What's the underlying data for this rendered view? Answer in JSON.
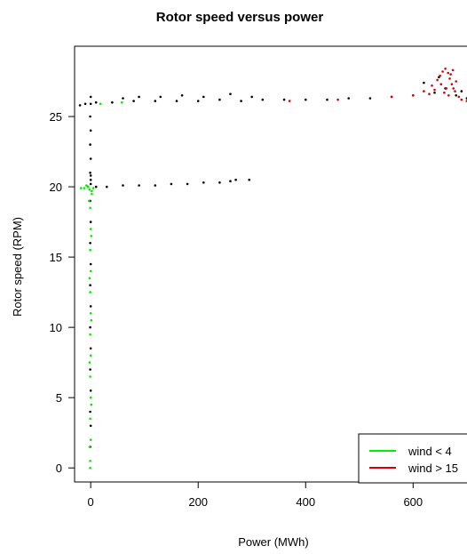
{
  "chart_data": {
    "type": "scatter",
    "title": "Rotor speed versus power",
    "xlabel": "Power (MWh)",
    "ylabel": "Rotor speed (RPM)",
    "xlim": [
      -30,
      730
    ],
    "ylim": [
      -1,
      30
    ],
    "xticks": [
      0,
      200,
      400,
      600
    ],
    "yticks": [
      0,
      5,
      10,
      15,
      20,
      25
    ],
    "grid": false,
    "legend_position": "bottom-right",
    "legend": [
      {
        "label": "wind < 4",
        "color": "#00ee00"
      },
      {
        "label": "wind > 15",
        "color": "#dd0000"
      }
    ],
    "series": [
      {
        "name": "wind < 4",
        "color": "#00ee00",
        "points": [
          [
            -5,
            20.0
          ],
          [
            -12,
            19.9
          ],
          [
            -18,
            19.9
          ],
          [
            -2,
            19.8
          ],
          [
            2,
            19.7
          ],
          [
            -8,
            20.1
          ],
          [
            5,
            19.9
          ],
          [
            -1,
            18.5
          ],
          [
            0,
            17.0
          ],
          [
            -1,
            15.5
          ],
          [
            0,
            14.0
          ],
          [
            -1,
            12.5
          ],
          [
            0,
            11.0
          ],
          [
            -1,
            9.5
          ],
          [
            0,
            8.0
          ],
          [
            -1,
            6.5
          ],
          [
            0,
            5.0
          ],
          [
            -1,
            3.5
          ],
          [
            0,
            2.0
          ],
          [
            -1,
            0.5
          ],
          [
            -1,
            0.0
          ],
          [
            2,
            19.5
          ],
          [
            -3,
            19.0
          ],
          [
            1,
            16.5
          ],
          [
            -2,
            13.5
          ],
          [
            1,
            10.5
          ],
          [
            -2,
            7.5
          ],
          [
            1,
            4.5
          ],
          [
            -2,
            1.5
          ],
          [
            18,
            25.9
          ],
          [
            58,
            26.0
          ]
        ]
      },
      {
        "name": "wind > 15",
        "color": "#dd0000",
        "points": [
          [
            370,
            26.1
          ],
          [
            460,
            26.2
          ],
          [
            560,
            26.4
          ],
          [
            600,
            26.5
          ],
          [
            620,
            26.8
          ],
          [
            635,
            27.2
          ],
          [
            645,
            27.6
          ],
          [
            650,
            27.9
          ],
          [
            655,
            28.2
          ],
          [
            660,
            28.4
          ],
          [
            665,
            28.1
          ],
          [
            668,
            27.7
          ],
          [
            672,
            27.3
          ],
          [
            675,
            27.0
          ],
          [
            678,
            26.8
          ],
          [
            680,
            27.5
          ],
          [
            670,
            28.0
          ],
          [
            662,
            27.0
          ],
          [
            658,
            26.7
          ],
          [
            685,
            26.4
          ],
          [
            690,
            26.2
          ],
          [
            700,
            26.1
          ],
          [
            710,
            26.2
          ],
          [
            640,
            26.9
          ],
          [
            630,
            26.6
          ],
          [
            666,
            26.5
          ],
          [
            674,
            28.3
          ],
          [
            652,
            27.3
          ]
        ]
      },
      {
        "name": "",
        "color": "#000000",
        "points": [
          [
            -20,
            25.8
          ],
          [
            -10,
            25.9
          ],
          [
            0,
            25.9
          ],
          [
            10,
            26.0
          ],
          [
            40,
            26.0
          ],
          [
            80,
            26.1
          ],
          [
            120,
            26.1
          ],
          [
            160,
            26.1
          ],
          [
            200,
            26.1
          ],
          [
            240,
            26.2
          ],
          [
            280,
            26.1
          ],
          [
            320,
            26.2
          ],
          [
            360,
            26.2
          ],
          [
            400,
            26.2
          ],
          [
            440,
            26.2
          ],
          [
            480,
            26.3
          ],
          [
            520,
            26.3
          ],
          [
            560,
            26.4
          ],
          [
            600,
            26.5
          ],
          [
            640,
            26.7
          ],
          [
            660,
            27.0
          ],
          [
            680,
            26.5
          ],
          [
            700,
            26.3
          ],
          [
            60,
            26.3
          ],
          [
            90,
            26.4
          ],
          [
            130,
            26.4
          ],
          [
            170,
            26.5
          ],
          [
            210,
            26.4
          ],
          [
            260,
            26.6
          ],
          [
            300,
            26.4
          ],
          [
            0,
            26.4
          ],
          [
            -1,
            25.0
          ],
          [
            0,
            24.0
          ],
          [
            -1,
            23.0
          ],
          [
            0,
            22.0
          ],
          [
            -1,
            21.0
          ],
          [
            0,
            20.5
          ],
          [
            -1,
            19.0
          ],
          [
            0,
            17.5
          ],
          [
            -1,
            16.0
          ],
          [
            0,
            14.5
          ],
          [
            -1,
            13.0
          ],
          [
            0,
            11.5
          ],
          [
            -1,
            10.0
          ],
          [
            0,
            8.5
          ],
          [
            -1,
            7.0
          ],
          [
            0,
            5.5
          ],
          [
            -1,
            4.0
          ],
          [
            0,
            3.0
          ],
          [
            -1,
            1.5
          ],
          [
            -5,
            20.0
          ],
          [
            10,
            20.0
          ],
          [
            30,
            20.0
          ],
          [
            60,
            20.1
          ],
          [
            90,
            20.1
          ],
          [
            120,
            20.1
          ],
          [
            150,
            20.2
          ],
          [
            180,
            20.2
          ],
          [
            210,
            20.3
          ],
          [
            240,
            20.3
          ],
          [
            260,
            20.4
          ],
          [
            270,
            20.5
          ],
          [
            295,
            20.5
          ],
          [
            0,
            20.2
          ],
          [
            0,
            20.8
          ],
          [
            620,
            27.4
          ],
          [
            648,
            27.8
          ],
          [
            690,
            26.8
          ]
        ]
      }
    ]
  }
}
